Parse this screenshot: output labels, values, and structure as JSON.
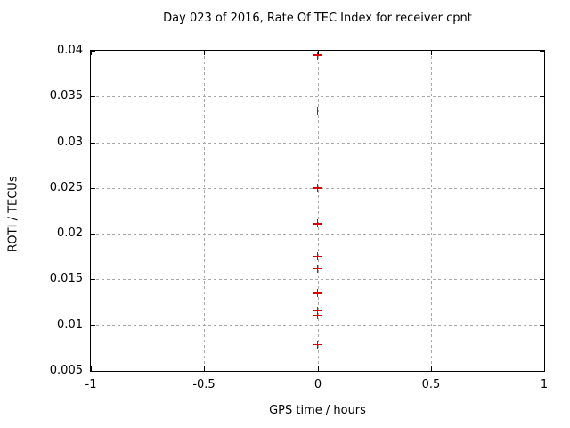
{
  "chart_data": {
    "type": "scatter",
    "title": "Day 023 of 2016, Rate Of TEC Index for receiver cpnt",
    "xlabel": "GPS time / hours",
    "ylabel": "ROTI / TECUs",
    "xlim": [
      -1,
      1
    ],
    "ylim": [
      0.005,
      0.04
    ],
    "grid": true,
    "legend": "none",
    "marker": "plus",
    "marker_color": "#dd0000",
    "grid_color": "#a8a8a8",
    "axis_color": "#000000",
    "x_ticks": [
      {
        "v": -1,
        "label": "-1"
      },
      {
        "v": -0.5,
        "label": "-0.5"
      },
      {
        "v": 0,
        "label": "0"
      },
      {
        "v": 0.5,
        "label": "0.5"
      },
      {
        "v": 1,
        "label": "1"
      }
    ],
    "y_ticks": [
      {
        "v": 0.005,
        "label": "0.005"
      },
      {
        "v": 0.01,
        "label": "0.01"
      },
      {
        "v": 0.015,
        "label": "0.015"
      },
      {
        "v": 0.02,
        "label": "0.02"
      },
      {
        "v": 0.025,
        "label": "0.025"
      },
      {
        "v": 0.03,
        "label": "0.03"
      },
      {
        "v": 0.035,
        "label": "0.035"
      },
      {
        "v": 0.04,
        "label": "0.04"
      }
    ],
    "points": [
      {
        "x": 0,
        "y": 0.0395
      },
      {
        "x": 0,
        "y": 0.0334
      },
      {
        "x": 0,
        "y": 0.025
      },
      {
        "x": 0,
        "y": 0.0211
      },
      {
        "x": 0,
        "y": 0.0175
      },
      {
        "x": 0,
        "y": 0.0162
      },
      {
        "x": 0,
        "y": 0.0135
      },
      {
        "x": 0,
        "y": 0.0116
      },
      {
        "x": 0,
        "y": 0.0111
      },
      {
        "x": 0,
        "y": 0.0079
      }
    ]
  }
}
